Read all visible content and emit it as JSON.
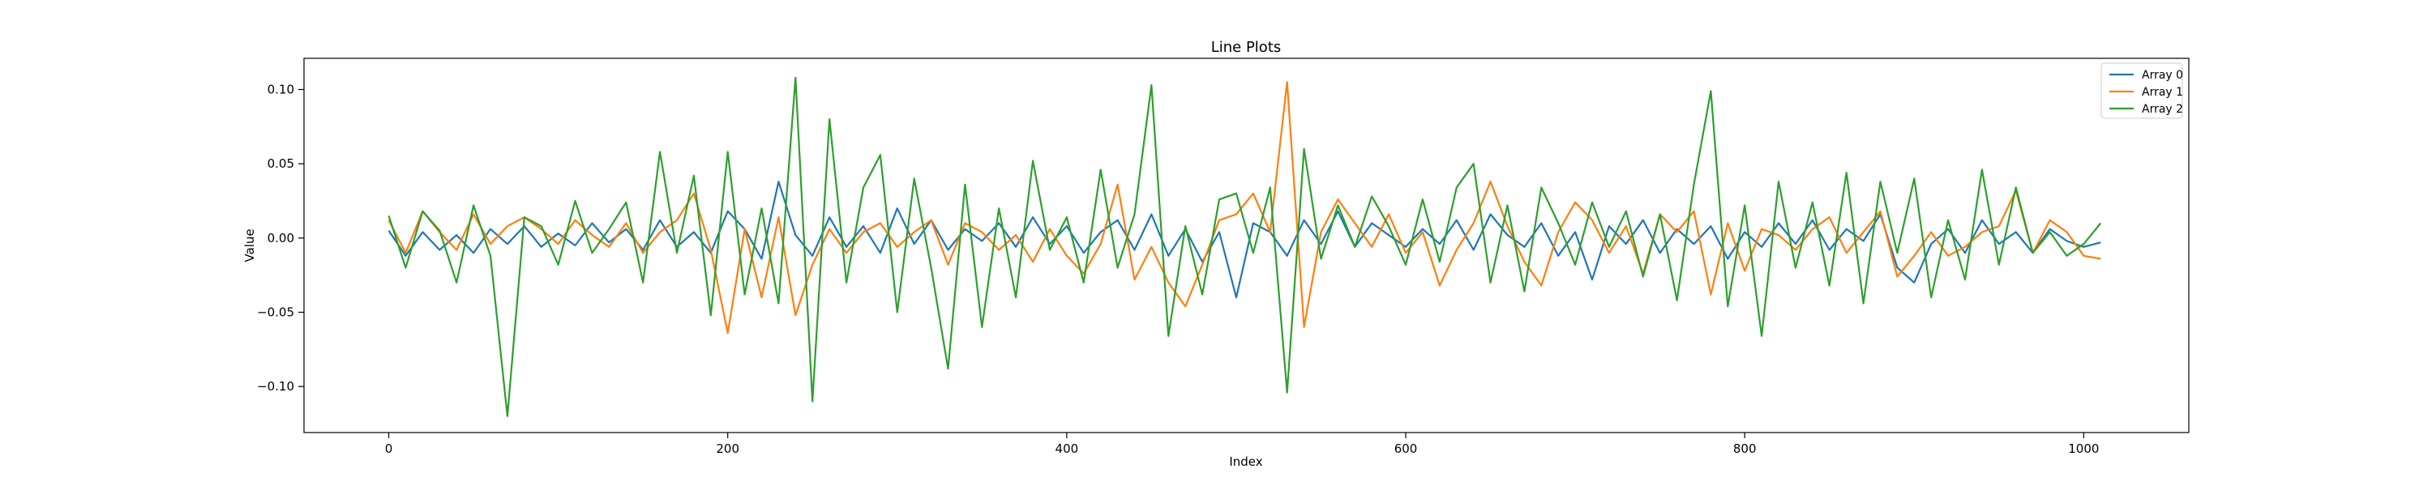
{
  "chart_data": {
    "type": "line",
    "title": "Line Plots",
    "xlabel": "Index",
    "ylabel": "Value",
    "xlim": [
      -50,
      1062
    ],
    "ylim": [
      -0.131,
      0.121
    ],
    "xticks": [
      0,
      200,
      400,
      600,
      800,
      1000
    ],
    "xtick_labels": [
      "0",
      "200",
      "400",
      "600",
      "800",
      "1000"
    ],
    "yticks": [
      -0.1,
      -0.05,
      0.0,
      0.05,
      0.1
    ],
    "ytick_labels": [
      "−0.10",
      "−0.05",
      "0.00",
      "0.05",
      "0.10"
    ],
    "grid": false,
    "legend_position": "top-right",
    "series": [
      {
        "name": "Array 0",
        "color": "#1f77b4",
        "x": [
          0,
          10,
          20,
          30,
          40,
          50,
          60,
          70,
          80,
          90,
          100,
          110,
          120,
          130,
          140,
          150,
          160,
          170,
          180,
          190,
          200,
          210,
          220,
          230,
          240,
          250,
          260,
          270,
          280,
          290,
          300,
          310,
          320,
          330,
          340,
          350,
          360,
          370,
          380,
          390,
          400,
          410,
          420,
          430,
          440,
          450,
          460,
          470,
          480,
          490,
          500,
          510,
          520,
          530,
          540,
          550,
          560,
          570,
          580,
          590,
          600,
          610,
          620,
          630,
          640,
          650,
          660,
          670,
          680,
          690,
          700,
          710,
          720,
          730,
          740,
          750,
          760,
          770,
          780,
          790,
          800,
          810,
          820,
          830,
          840,
          850,
          860,
          870,
          880,
          890,
          900,
          910,
          920,
          930,
          940,
          950,
          960,
          970,
          980,
          990,
          1000,
          1010
        ],
        "values": [
          0.005,
          -0.012,
          0.004,
          -0.008,
          0.002,
          -0.01,
          0.006,
          -0.004,
          0.008,
          -0.006,
          0.003,
          -0.005,
          0.01,
          -0.003,
          0.006,
          -0.008,
          0.012,
          -0.006,
          0.004,
          -0.01,
          0.018,
          0.006,
          -0.014,
          0.038,
          0.002,
          -0.012,
          0.014,
          -0.006,
          0.008,
          -0.01,
          0.02,
          -0.004,
          0.012,
          -0.008,
          0.006,
          -0.002,
          0.01,
          -0.006,
          0.014,
          -0.004,
          0.008,
          -0.01,
          0.004,
          0.012,
          -0.008,
          0.016,
          -0.012,
          0.006,
          -0.016,
          0.004,
          -0.04,
          0.01,
          0.004,
          -0.012,
          0.012,
          -0.004,
          0.018,
          -0.006,
          0.01,
          0.002,
          -0.006,
          0.006,
          -0.004,
          0.012,
          -0.008,
          0.016,
          0.002,
          -0.006,
          0.01,
          -0.012,
          0.004,
          -0.028,
          0.008,
          -0.004,
          0.012,
          -0.01,
          0.006,
          -0.004,
          0.008,
          -0.014,
          0.004,
          -0.006,
          0.01,
          -0.004,
          0.012,
          -0.008,
          0.006,
          -0.002,
          0.016,
          -0.02,
          -0.03,
          -0.004,
          0.006,
          -0.01,
          0.012,
          -0.004,
          0.004,
          -0.01,
          0.006,
          -0.002,
          -0.006,
          -0.003
        ]
      },
      {
        "name": "Array 1",
        "color": "#ff7f0e",
        "x": [
          0,
          10,
          20,
          30,
          40,
          50,
          60,
          70,
          80,
          90,
          100,
          110,
          120,
          130,
          140,
          150,
          160,
          170,
          180,
          190,
          200,
          210,
          220,
          230,
          240,
          250,
          260,
          270,
          280,
          290,
          300,
          310,
          320,
          330,
          340,
          350,
          360,
          370,
          380,
          390,
          400,
          410,
          420,
          430,
          440,
          450,
          460,
          470,
          480,
          490,
          500,
          510,
          520,
          530,
          540,
          550,
          560,
          570,
          580,
          590,
          600,
          610,
          620,
          630,
          640,
          650,
          660,
          670,
          680,
          690,
          700,
          710,
          720,
          730,
          740,
          750,
          760,
          770,
          780,
          790,
          800,
          810,
          820,
          830,
          840,
          850,
          860,
          870,
          880,
          890,
          900,
          910,
          920,
          930,
          940,
          950,
          960,
          970,
          980,
          990,
          1000,
          1010
        ],
        "values": [
          0.012,
          -0.01,
          0.018,
          0.004,
          -0.008,
          0.016,
          -0.004,
          0.008,
          0.014,
          0.006,
          -0.004,
          0.012,
          0.002,
          -0.006,
          0.01,
          -0.01,
          0.004,
          0.012,
          0.03,
          -0.008,
          -0.064,
          0.006,
          -0.04,
          0.014,
          -0.052,
          -0.018,
          0.006,
          -0.01,
          0.004,
          0.01,
          -0.006,
          0.004,
          0.012,
          -0.018,
          0.01,
          0.004,
          -0.008,
          0.002,
          -0.016,
          0.006,
          -0.012,
          -0.024,
          -0.004,
          0.036,
          -0.028,
          -0.006,
          -0.03,
          -0.046,
          -0.018,
          0.012,
          0.016,
          0.03,
          0.004,
          0.105,
          -0.06,
          0.004,
          0.026,
          0.01,
          -0.006,
          0.016,
          -0.01,
          0.004,
          -0.032,
          -0.008,
          0.01,
          0.038,
          0.008,
          -0.016,
          -0.032,
          0.004,
          0.024,
          0.012,
          -0.01,
          0.008,
          -0.024,
          0.016,
          0.004,
          0.018,
          -0.038,
          0.01,
          -0.022,
          0.006,
          0.002,
          -0.008,
          0.006,
          0.014,
          -0.01,
          0.004,
          0.018,
          -0.026,
          -0.012,
          0.004,
          -0.012,
          -0.006,
          0.004,
          0.008,
          0.032,
          -0.01,
          0.012,
          0.004,
          -0.012,
          -0.014
        ]
      },
      {
        "name": "Array 2",
        "color": "#2ca02c",
        "x": [
          0,
          10,
          20,
          30,
          40,
          50,
          60,
          70,
          80,
          90,
          100,
          110,
          120,
          130,
          140,
          150,
          160,
          170,
          180,
          190,
          200,
          210,
          220,
          230,
          240,
          250,
          260,
          270,
          280,
          290,
          300,
          310,
          320,
          330,
          340,
          350,
          360,
          370,
          380,
          390,
          400,
          410,
          420,
          430,
          440,
          450,
          460,
          470,
          480,
          490,
          500,
          510,
          520,
          530,
          540,
          550,
          560,
          570,
          580,
          590,
          600,
          610,
          620,
          630,
          640,
          650,
          660,
          670,
          680,
          690,
          700,
          710,
          720,
          730,
          740,
          750,
          760,
          770,
          780,
          790,
          800,
          810,
          820,
          830,
          840,
          850,
          860,
          870,
          880,
          890,
          900,
          910,
          920,
          930,
          940,
          950,
          960,
          970,
          980,
          990,
          1000,
          1010
        ],
        "values": [
          0.015,
          -0.02,
          0.018,
          0.005,
          -0.03,
          0.022,
          -0.012,
          -0.12,
          0.014,
          0.008,
          -0.018,
          0.025,
          -0.01,
          0.006,
          0.024,
          -0.03,
          0.058,
          -0.01,
          0.042,
          -0.052,
          0.058,
          -0.038,
          0.02,
          -0.044,
          0.108,
          -0.11,
          0.08,
          -0.03,
          0.034,
          0.056,
          -0.05,
          0.04,
          -0.02,
          -0.088,
          0.036,
          -0.06,
          0.02,
          -0.04,
          0.052,
          -0.008,
          0.014,
          -0.03,
          0.046,
          -0.02,
          0.016,
          0.103,
          -0.066,
          0.008,
          -0.038,
          0.026,
          0.03,
          -0.01,
          0.034,
          -0.104,
          0.06,
          -0.014,
          0.022,
          -0.006,
          0.028,
          0.008,
          -0.018,
          0.026,
          -0.016,
          0.034,
          0.05,
          -0.03,
          0.022,
          -0.036,
          0.034,
          0.01,
          -0.018,
          0.024,
          -0.006,
          0.018,
          -0.026,
          0.016,
          -0.042,
          0.036,
          0.099,
          -0.046,
          0.022,
          -0.066,
          0.038,
          -0.02,
          0.024,
          -0.032,
          0.044,
          -0.044,
          0.038,
          -0.01,
          0.04,
          -0.04,
          0.012,
          -0.028,
          0.046,
          -0.018,
          0.034,
          -0.01,
          0.004,
          -0.012,
          -0.004,
          0.01
        ]
      }
    ]
  }
}
